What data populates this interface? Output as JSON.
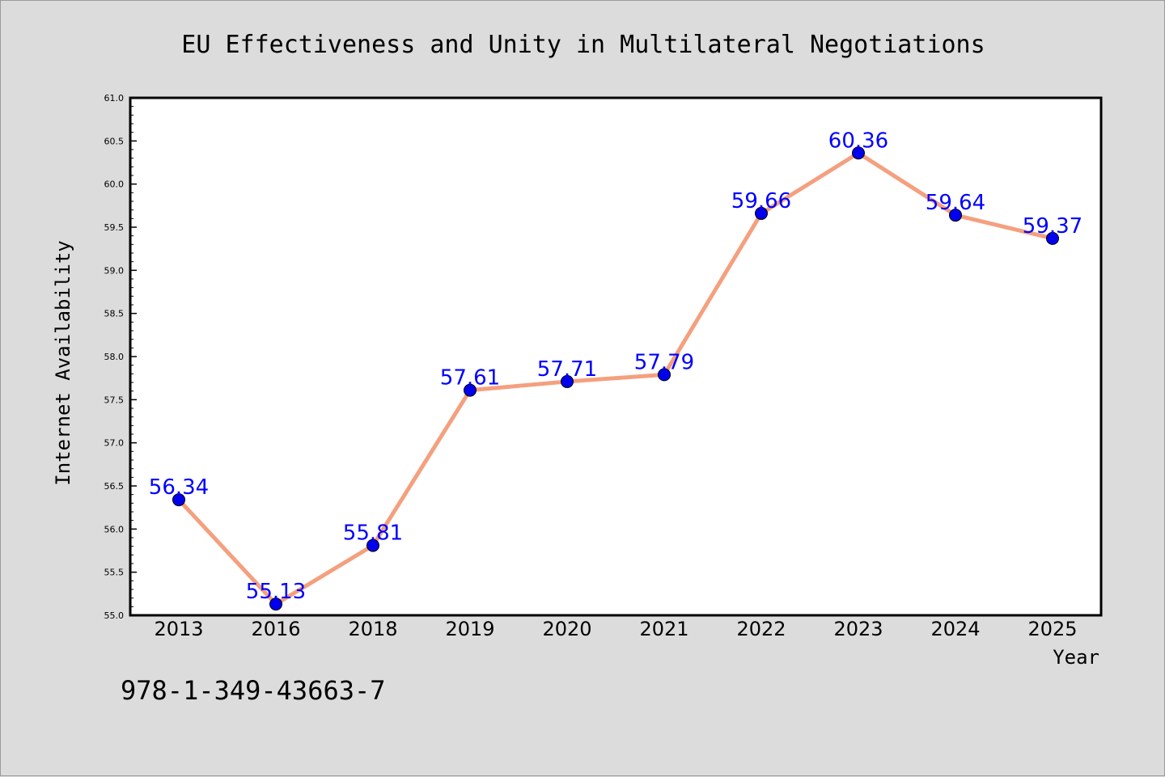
{
  "chart_data": {
    "type": "line",
    "title": "EU Effectiveness and Unity in Multilateral Negotiations",
    "xlabel": "Year",
    "ylabel": "Internet Availability",
    "categories": [
      "2013",
      "2016",
      "2018",
      "2019",
      "2020",
      "2021",
      "2022",
      "2023",
      "2024",
      "2025"
    ],
    "series": [
      {
        "values": [
          56.34,
          55.13,
          55.81,
          57.61,
          57.71,
          57.79,
          59.66,
          60.36,
          59.64,
          59.37
        ],
        "data_labels": [
          "56.34",
          "55.13",
          "55.81",
          "57.61",
          "57.71",
          "57.79",
          "59.66",
          "60.36",
          "59.64",
          "59.37"
        ],
        "line_color": "#f4a07f",
        "marker_color": "#0000ee"
      }
    ],
    "ylim": [
      55.0,
      61.0
    ],
    "yticks": [
      "55.0",
      "55.5",
      "56.0",
      "56.5",
      "57.0",
      "57.5",
      "58.0",
      "58.5",
      "59.0",
      "59.5",
      "60.0",
      "60.5",
      "61.0"
    ],
    "grid": false,
    "label_color": "#0000ff"
  },
  "footer": {
    "isbn": "978-1-349-43663-7"
  }
}
